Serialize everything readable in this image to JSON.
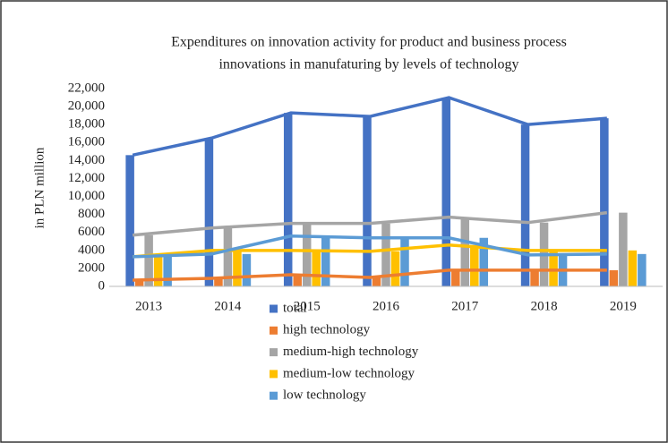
{
  "chart_data": {
    "type": "bar_line",
    "title": [
      "Expenditures on innovation activity for product and business process",
      "innovations  in manufaturing by levels of technology"
    ],
    "y_label": "in PLN million",
    "categories": [
      "2013",
      "2014",
      "2015",
      "2016",
      "2017",
      "2018",
      "2019"
    ],
    "series": [
      {
        "name": "total",
        "color": "#4472c4",
        "values": [
          14600,
          16500,
          19300,
          18900,
          21000,
          18000,
          18700
        ]
      },
      {
        "name": "high technology",
        "color": "#ed7d31",
        "values": [
          700,
          900,
          1300,
          1000,
          1800,
          1800,
          1800
        ]
      },
      {
        "name": "medium-high technology",
        "color": "#a5a5a5",
        "values": [
          5700,
          6500,
          7000,
          7000,
          7700,
          7100,
          8200
        ]
      },
      {
        "name": "medium-low technology",
        "color": "#ffc000",
        "values": [
          3300,
          4000,
          4000,
          3900,
          4600,
          4000,
          4000
        ]
      },
      {
        "name": "low technology",
        "color": "#5b9bd5",
        "values": [
          3300,
          3600,
          5600,
          5400,
          5400,
          3500,
          3600
        ]
      }
    ],
    "ylim": [
      0,
      22000
    ],
    "yticks": [
      0,
      2000,
      4000,
      6000,
      8000,
      {
        "value": 10000,
        "label": "10,000"
      },
      {
        "value": 12000,
        "label": "12,000"
      },
      {
        "value": 14000,
        "label": "14,000"
      },
      {
        "value": 16000,
        "label": "16,000"
      },
      {
        "value": 18000,
        "label": "18,000"
      },
      {
        "value": 20000,
        "label": "20,000"
      },
      {
        "value": 22000,
        "label": "22,000"
      }
    ],
    "grid": false,
    "legend": "bottom"
  }
}
